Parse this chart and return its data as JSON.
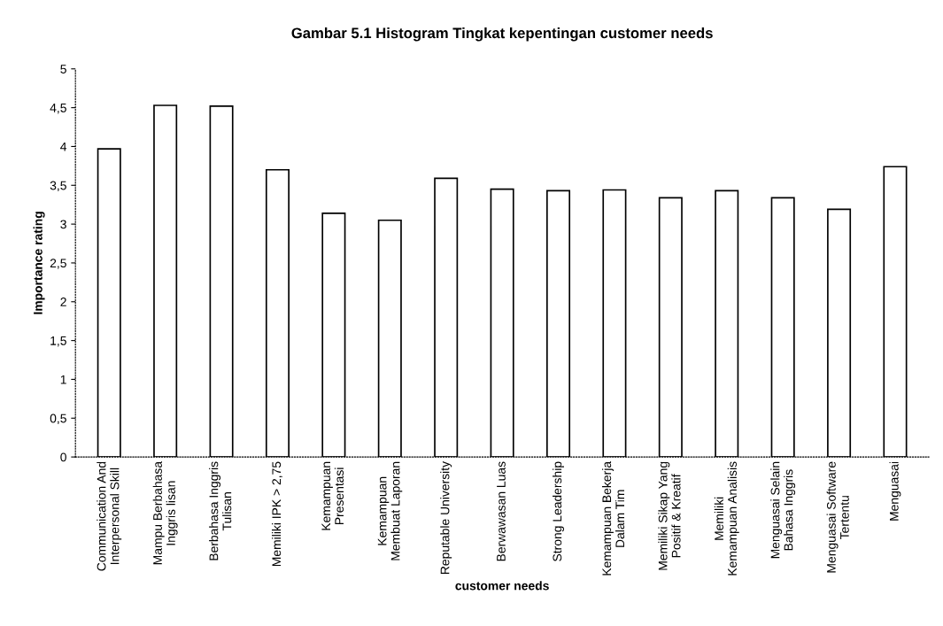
{
  "chart_data": {
    "type": "bar",
    "title": "Gambar 5.1 Histogram Tingkat kepentingan customer needs",
    "xlabel": "customer needs",
    "ylabel": "Importance rating",
    "categories": [
      "Communication And\nInterpersonal Skill",
      "Mampu Berbahasa\nInggris lisan",
      "Berbahasa Inggris\nTulisan",
      "Memiliki IPK > 2,75",
      "Kemampuan\nPresentasi",
      "Kemampuan\nMembuat Laporan",
      "Reputable University",
      "Berwawasan Luas",
      "Strong Leadership",
      "Kemampuan Bekerja\nDalam Tim",
      "Memiliki Sikap Yang\nPositif & Kreatif",
      "Memiliki\nKemampuan Analisis",
      "Menguasai Selain\nBahasa Inggris",
      "Menguasai Software\nTertentu",
      "Menguasai"
    ],
    "values": [
      3.97,
      4.53,
      4.52,
      3.7,
      3.14,
      3.05,
      3.59,
      3.45,
      3.43,
      3.44,
      3.34,
      3.43,
      3.34,
      3.19,
      3.74
    ],
    "color": "#ffffff",
    "ylim": [
      0,
      5
    ],
    "yticks": [
      0,
      {
        "value": 0.5,
        "label": "0,5"
      },
      1,
      {
        "value": 1.5,
        "label": "1,5"
      },
      2,
      {
        "value": 2.5,
        "label": "2,5"
      },
      3,
      {
        "value": 3.5,
        "label": "3,5"
      },
      4,
      {
        "value": 4.5,
        "label": "4,5"
      },
      5
    ],
    "grid": false
  }
}
